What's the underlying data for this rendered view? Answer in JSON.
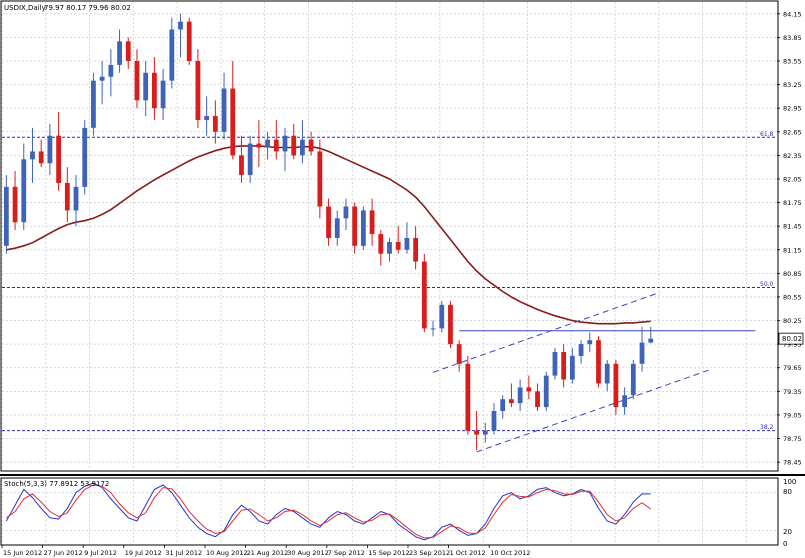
{
  "header": {
    "symbol_label": "USDIX,Daily",
    "ohlc_label": "79.97 80.17 79.96 80.02"
  },
  "oscillator": {
    "label": "Stoch(5,3,3) 77.8912 53.9172",
    "levels": [
      "100",
      "80",
      "20",
      "0"
    ]
  },
  "colors": {
    "bull_candle": "#3f63b8",
    "bear_candle": "#d81d1d",
    "moving_average": "#8b1a1a",
    "grid": "#c5d0d6",
    "fib_line": "#2c2cb3",
    "channel_line": "#3b44b8",
    "stoch_main": "#2535c9",
    "stoch_signal": "#e03030",
    "price_tag_bg": "#ffffff"
  },
  "chart_data": [
    {
      "type": "candlestick",
      "title": "USDIX,Daily",
      "price_axis": [
        "84.15",
        "83.85",
        "83.55",
        "83.25",
        "82.95",
        "82.65",
        "82.35",
        "82.05",
        "81.75",
        "81.45",
        "81.15",
        "80.85",
        "80.55",
        "80.25",
        "79.95",
        "79.65",
        "79.35",
        "79.05",
        "78.75",
        "78.45"
      ],
      "ylim": [
        78.35,
        84.3
      ],
      "x_axis_labels": [
        "15 Jun 2012",
        "27 Jun 2012",
        "9 Jul 2012",
        "19 Jul 2012",
        "31 Jul 2012",
        "10 Aug 2012",
        "21 Aug 2012",
        "30 Aug 2012",
        "7 Sep 2012",
        "15 Sep 2012",
        "23 Sep 2012",
        "1 Oct 2012",
        "10 Oct 2012"
      ],
      "last_price": "80.02",
      "fib_levels": [
        {
          "label": "61.8",
          "value": 82.58
        },
        {
          "label": "50.0",
          "value": 80.67
        },
        {
          "label": "38.2",
          "value": 78.85
        }
      ],
      "series": [
        {
          "name": "USDIX",
          "values": [
            {
              "o": 81.2,
              "h": 82.1,
              "l": 81.1,
              "c": 81.95
            },
            {
              "o": 81.95,
              "h": 82.15,
              "l": 81.4,
              "c": 81.5
            },
            {
              "o": 81.5,
              "h": 82.5,
              "l": 81.4,
              "c": 82.3
            },
            {
              "o": 82.3,
              "h": 82.7,
              "l": 82.0,
              "c": 82.4
            },
            {
              "o": 82.4,
              "h": 82.55,
              "l": 82.2,
              "c": 82.25
            },
            {
              "o": 82.25,
              "h": 82.75,
              "l": 82.1,
              "c": 82.6
            },
            {
              "o": 82.6,
              "h": 82.9,
              "l": 81.9,
              "c": 82.0
            },
            {
              "o": 82.0,
              "h": 82.2,
              "l": 81.5,
              "c": 81.65
            },
            {
              "o": 81.65,
              "h": 82.1,
              "l": 81.45,
              "c": 81.95
            },
            {
              "o": 81.95,
              "h": 82.8,
              "l": 81.85,
              "c": 82.7
            },
            {
              "o": 82.7,
              "h": 83.4,
              "l": 82.6,
              "c": 83.3
            },
            {
              "o": 83.3,
              "h": 83.55,
              "l": 83.0,
              "c": 83.35
            },
            {
              "o": 83.35,
              "h": 83.7,
              "l": 83.1,
              "c": 83.5
            },
            {
              "o": 83.5,
              "h": 83.95,
              "l": 83.4,
              "c": 83.8
            },
            {
              "o": 83.8,
              "h": 83.85,
              "l": 83.45,
              "c": 83.55
            },
            {
              "o": 83.55,
              "h": 83.7,
              "l": 82.95,
              "c": 83.05
            },
            {
              "o": 83.05,
              "h": 83.55,
              "l": 82.85,
              "c": 83.4
            },
            {
              "o": 83.4,
              "h": 83.6,
              "l": 82.8,
              "c": 82.95
            },
            {
              "o": 82.95,
              "h": 83.45,
              "l": 82.8,
              "c": 83.3
            },
            {
              "o": 83.3,
              "h": 84.1,
              "l": 83.2,
              "c": 83.95
            },
            {
              "o": 83.95,
              "h": 84.15,
              "l": 83.6,
              "c": 84.05
            },
            {
              "o": 84.05,
              "h": 84.1,
              "l": 83.5,
              "c": 83.55
            },
            {
              "o": 83.55,
              "h": 83.7,
              "l": 82.7,
              "c": 82.8
            },
            {
              "o": 82.8,
              "h": 83.1,
              "l": 82.6,
              "c": 82.85
            },
            {
              "o": 82.85,
              "h": 83.05,
              "l": 82.5,
              "c": 82.65
            },
            {
              "o": 82.65,
              "h": 83.4,
              "l": 82.55,
              "c": 83.2
            },
            {
              "o": 83.2,
              "h": 83.55,
              "l": 82.3,
              "c": 82.35
            },
            {
              "o": 82.35,
              "h": 82.6,
              "l": 82.0,
              "c": 82.1
            },
            {
              "o": 82.1,
              "h": 82.6,
              "l": 82.0,
              "c": 82.5
            },
            {
              "o": 82.5,
              "h": 82.8,
              "l": 82.2,
              "c": 82.45
            },
            {
              "o": 82.45,
              "h": 82.65,
              "l": 82.3,
              "c": 82.55
            },
            {
              "o": 82.55,
              "h": 82.8,
              "l": 82.3,
              "c": 82.4
            },
            {
              "o": 82.4,
              "h": 82.7,
              "l": 82.15,
              "c": 82.6
            },
            {
              "o": 82.6,
              "h": 82.75,
              "l": 82.3,
              "c": 82.35
            },
            {
              "o": 82.35,
              "h": 82.8,
              "l": 82.25,
              "c": 82.55
            },
            {
              "o": 82.55,
              "h": 82.65,
              "l": 82.35,
              "c": 82.4
            },
            {
              "o": 82.4,
              "h": 82.55,
              "l": 81.55,
              "c": 81.7
            },
            {
              "o": 81.7,
              "h": 81.8,
              "l": 81.2,
              "c": 81.3
            },
            {
              "o": 81.3,
              "h": 81.65,
              "l": 81.2,
              "c": 81.55
            },
            {
              "o": 81.55,
              "h": 81.8,
              "l": 81.4,
              "c": 81.7
            },
            {
              "o": 81.7,
              "h": 81.75,
              "l": 81.1,
              "c": 81.2
            },
            {
              "o": 81.2,
              "h": 81.7,
              "l": 81.15,
              "c": 81.65
            },
            {
              "o": 81.65,
              "h": 81.8,
              "l": 81.2,
              "c": 81.35
            },
            {
              "o": 81.35,
              "h": 81.4,
              "l": 80.95,
              "c": 81.1
            },
            {
              "o": 81.1,
              "h": 81.3,
              "l": 81.0,
              "c": 81.25
            },
            {
              "o": 81.25,
              "h": 81.45,
              "l": 81.1,
              "c": 81.15
            },
            {
              "o": 81.15,
              "h": 81.5,
              "l": 81.1,
              "c": 81.3
            },
            {
              "o": 81.3,
              "h": 81.45,
              "l": 80.9,
              "c": 81.0
            },
            {
              "o": 81.0,
              "h": 81.1,
              "l": 80.1,
              "c": 80.15
            },
            {
              "o": 80.15,
              "h": 80.25,
              "l": 80.05,
              "c": 80.15
            },
            {
              "o": 80.15,
              "h": 80.5,
              "l": 80.1,
              "c": 80.45
            },
            {
              "o": 80.45,
              "h": 80.5,
              "l": 79.9,
              "c": 79.95
            },
            {
              "o": 79.95,
              "h": 80.0,
              "l": 79.6,
              "c": 79.7
            },
            {
              "o": 79.7,
              "h": 79.8,
              "l": 78.8,
              "c": 78.85
            },
            {
              "o": 78.85,
              "h": 79.1,
              "l": 78.6,
              "c": 78.8
            },
            {
              "o": 78.8,
              "h": 78.95,
              "l": 78.7,
              "c": 78.85
            },
            {
              "o": 78.85,
              "h": 79.2,
              "l": 78.8,
              "c": 79.1
            },
            {
              "o": 79.1,
              "h": 79.3,
              "l": 79.0,
              "c": 79.25
            },
            {
              "o": 79.25,
              "h": 79.45,
              "l": 79.15,
              "c": 79.2
            },
            {
              "o": 79.2,
              "h": 79.5,
              "l": 79.1,
              "c": 79.4
            },
            {
              "o": 79.4,
              "h": 79.55,
              "l": 79.25,
              "c": 79.35
            },
            {
              "o": 79.35,
              "h": 79.45,
              "l": 79.1,
              "c": 79.15
            },
            {
              "o": 79.15,
              "h": 79.6,
              "l": 79.1,
              "c": 79.55
            },
            {
              "o": 79.55,
              "h": 79.9,
              "l": 79.5,
              "c": 79.85
            },
            {
              "o": 79.85,
              "h": 79.95,
              "l": 79.4,
              "c": 79.5
            },
            {
              "o": 79.5,
              "h": 79.9,
              "l": 79.45,
              "c": 79.8
            },
            {
              "o": 79.8,
              "h": 80.0,
              "l": 79.7,
              "c": 79.95
            },
            {
              "o": 79.95,
              "h": 80.1,
              "l": 79.85,
              "c": 80.0
            },
            {
              "o": 80.0,
              "h": 80.05,
              "l": 79.4,
              "c": 79.45
            },
            {
              "o": 79.45,
              "h": 79.75,
              "l": 79.35,
              "c": 79.7
            },
            {
              "o": 79.7,
              "h": 79.75,
              "l": 79.05,
              "c": 79.15
            },
            {
              "o": 79.15,
              "h": 79.4,
              "l": 79.05,
              "c": 79.3
            },
            {
              "o": 79.3,
              "h": 79.75,
              "l": 79.25,
              "c": 79.7
            },
            {
              "o": 79.7,
              "h": 80.17,
              "l": 79.6,
              "c": 79.97
            },
            {
              "o": 79.97,
              "h": 80.17,
              "l": 79.96,
              "c": 80.02
            }
          ]
        },
        {
          "name": "MA",
          "values": [
            81.15,
            81.17,
            81.2,
            81.24,
            81.3,
            81.36,
            81.42,
            81.47,
            81.5,
            81.52,
            81.55,
            81.6,
            81.66,
            81.74,
            81.82,
            81.9,
            81.97,
            82.04,
            82.1,
            82.16,
            82.22,
            82.28,
            82.33,
            82.37,
            82.41,
            82.44,
            82.46,
            82.47,
            82.47,
            82.47,
            82.46,
            82.45,
            82.45,
            82.45,
            82.46,
            82.46,
            82.44,
            82.4,
            82.35,
            82.3,
            82.25,
            82.2,
            82.15,
            82.1,
            82.05,
            81.98,
            81.91,
            81.82,
            81.7,
            81.56,
            81.42,
            81.28,
            81.14,
            81.0,
            80.88,
            80.78,
            80.7,
            80.62,
            80.55,
            80.49,
            80.44,
            80.39,
            80.35,
            80.31,
            80.28,
            80.25,
            80.23,
            80.22,
            80.21,
            80.21,
            80.21,
            80.22,
            80.22,
            80.23,
            80.24
          ]
        }
      ]
    },
    {
      "type": "line",
      "title": "Stoch(5,3,3) 77.8912 53.9172",
      "ylim": [
        0,
        100
      ],
      "levels": [
        20,
        80
      ],
      "series": [
        {
          "name": "%K",
          "values": [
            35,
            60,
            85,
            72,
            55,
            40,
            38,
            55,
            80,
            90,
            95,
            88,
            70,
            55,
            40,
            35,
            60,
            85,
            92,
            80,
            60,
            40,
            25,
            15,
            10,
            20,
            45,
            60,
            50,
            35,
            30,
            45,
            55,
            50,
            40,
            30,
            25,
            40,
            50,
            45,
            35,
            30,
            40,
            50,
            45,
            30,
            20,
            10,
            5,
            10,
            25,
            30,
            20,
            12,
            15,
            30,
            55,
            75,
            80,
            70,
            75,
            85,
            88,
            80,
            75,
            78,
            85,
            80,
            55,
            35,
            30,
            45,
            65,
            78,
            78
          ]
        },
        {
          "name": "%D",
          "values": [
            40,
            50,
            70,
            78,
            65,
            50,
            42,
            48,
            68,
            85,
            92,
            90,
            80,
            62,
            48,
            40,
            48,
            72,
            88,
            86,
            70,
            50,
            35,
            22,
            15,
            18,
            35,
            52,
            54,
            45,
            35,
            40,
            50,
            52,
            45,
            35,
            28,
            35,
            45,
            48,
            40,
            33,
            36,
            45,
            46,
            36,
            25,
            14,
            8,
            9,
            18,
            27,
            24,
            16,
            15,
            24,
            45,
            65,
            77,
            74,
            73,
            80,
            85,
            83,
            78,
            77,
            82,
            82,
            65,
            45,
            35,
            40,
            55,
            64,
            54
          ]
        }
      ]
    }
  ]
}
